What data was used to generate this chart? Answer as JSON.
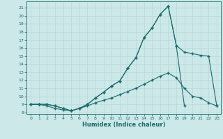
{
  "xlabel": "Humidex (Indice chaleur)",
  "bg_color": "#cce8e8",
  "line_color": "#1a6b6b",
  "grid_color": "#b8d8d8",
  "xlim": [
    -0.5,
    23.5
  ],
  "ylim": [
    7.8,
    21.8
  ],
  "xticks": [
    0,
    1,
    2,
    3,
    4,
    5,
    6,
    7,
    8,
    9,
    10,
    11,
    12,
    13,
    14,
    15,
    16,
    17,
    18,
    19,
    20,
    21,
    22,
    23
  ],
  "yticks": [
    8,
    9,
    10,
    11,
    12,
    13,
    14,
    15,
    16,
    17,
    18,
    19,
    20,
    21
  ],
  "line1_x": [
    0,
    1,
    2,
    3,
    4,
    5,
    6,
    7,
    8,
    9,
    10,
    11,
    12,
    13,
    14,
    15,
    16,
    17,
    18,
    19,
    20,
    21,
    22,
    23
  ],
  "line1_y": [
    9,
    9,
    8.8,
    8.5,
    8.3,
    8.2,
    8.5,
    8.8,
    9.2,
    9.5,
    9.8,
    10.2,
    10.6,
    11.0,
    11.5,
    12.0,
    12.5,
    12.9,
    12.3,
    11.0,
    10.0,
    9.8,
    9.2,
    8.8
  ],
  "line2_x": [
    0,
    1,
    2,
    3,
    4,
    5,
    6,
    7,
    8,
    9,
    10,
    11,
    12,
    13,
    14,
    15,
    16,
    17,
    18,
    19,
    20,
    21,
    22,
    23
  ],
  "line2_y": [
    9,
    9,
    9,
    8.8,
    8.5,
    8.2,
    8.5,
    9.0,
    9.8,
    10.5,
    11.3,
    11.9,
    13.5,
    14.8,
    17.3,
    18.5,
    20.2,
    21.2,
    16.3,
    15.5,
    15.3,
    15.1,
    15.0,
    8.8
  ],
  "line3_x": [
    0,
    1,
    2,
    3,
    4,
    5,
    6,
    7,
    8,
    9,
    10,
    11,
    12,
    13,
    14,
    15,
    16,
    17,
    18,
    19
  ],
  "line3_y": [
    9,
    9,
    9,
    8.8,
    8.5,
    8.2,
    8.5,
    9.0,
    9.8,
    10.5,
    11.3,
    11.9,
    13.5,
    14.8,
    17.3,
    18.5,
    20.2,
    21.2,
    16.3,
    8.8
  ]
}
